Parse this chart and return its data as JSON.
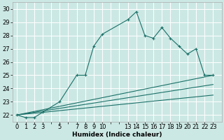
{
  "background_color": "#cce8e4",
  "grid_color": "#ffffff",
  "line_color": "#1a7068",
  "xlabel": "Humidex (Indice chaleur)",
  "ylim": [
    21.5,
    30.5
  ],
  "xlim": [
    -0.5,
    24.0
  ],
  "yticks": [
    22,
    23,
    24,
    25,
    26,
    27,
    28,
    29,
    30
  ],
  "xtick_labels": [
    "0",
    "1",
    "2",
    "3",
    "",
    "5",
    "",
    "7",
    "8",
    "9",
    "10",
    "",
    "",
    "13",
    "14",
    "15",
    "16",
    "17",
    "18",
    "19",
    "20",
    "21",
    "22",
    "23"
  ],
  "xtick_pos": [
    0,
    1,
    2,
    3,
    4,
    5,
    6,
    7,
    8,
    9,
    10,
    11,
    12,
    13,
    14,
    15,
    16,
    17,
    18,
    19,
    20,
    21,
    22,
    23
  ],
  "line1_x": [
    0,
    1,
    2,
    3,
    5,
    7,
    8,
    9,
    10,
    13,
    14,
    15,
    16,
    17,
    18,
    19,
    20,
    21,
    22,
    23
  ],
  "line1_y": [
    22.0,
    21.8,
    21.8,
    22.2,
    23.0,
    25.0,
    25.0,
    27.2,
    28.1,
    29.2,
    29.8,
    28.0,
    27.8,
    28.6,
    27.8,
    27.2,
    26.6,
    27.0,
    25.0,
    25.0
  ],
  "line2_x": [
    0,
    23
  ],
  "line2_y": [
    22.0,
    25.0
  ],
  "line3_x": [
    0,
    23
  ],
  "line3_y": [
    22.0,
    24.3
  ],
  "line4_x": [
    0,
    23
  ],
  "line4_y": [
    22.0,
    23.5
  ],
  "axis_fontsize": 6.5,
  "tick_fontsize": 6.0
}
